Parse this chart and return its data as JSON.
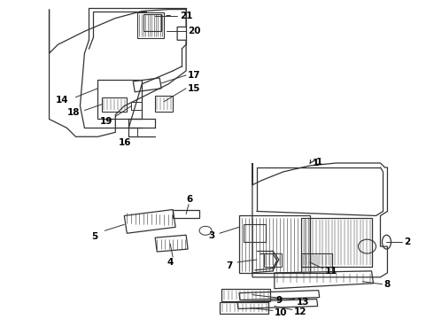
{
  "bg_color": "#ffffff",
  "line_color": "#333333",
  "fig_width": 4.9,
  "fig_height": 3.6,
  "dpi": 100,
  "label_fontsize": 7.5,
  "label_fontweight": "bold"
}
